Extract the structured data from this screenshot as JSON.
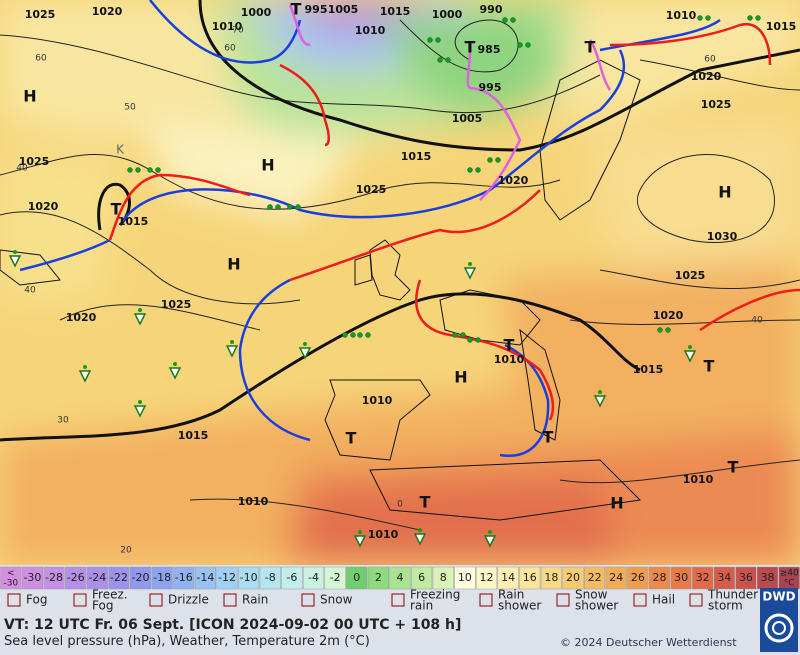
{
  "map": {
    "pressure_labels": [
      "1025",
      "1020",
      "1010",
      "1000",
      "995",
      "1005",
      "1015",
      "1010",
      "1000",
      "990",
      "985",
      "995",
      "1005",
      "1015",
      "1020",
      "1025",
      "1010",
      "1015",
      "1020",
      "1025",
      "1030",
      "1025",
      "1020",
      "1015",
      "1010",
      "1025",
      "1020",
      "1015",
      "1025",
      "1020",
      "1010",
      "1010",
      "1015",
      "1010",
      "1010"
    ],
    "contour_labels": [
      "60",
      "50",
      "40",
      "30",
      "20",
      "40",
      "60",
      "70",
      "0",
      "60",
      "40"
    ],
    "centers": [
      "H",
      "H",
      "H",
      "H",
      "H",
      "H",
      "T",
      "T",
      "T",
      "T",
      "T",
      "T",
      "T",
      "T",
      "T",
      "T",
      "K"
    ]
  },
  "scale": {
    "cells": [
      {
        "lines": [
          "<",
          "-30"
        ],
        "color": "#d58ee0"
      },
      {
        "label": "-30",
        "color": "#cf8ee2"
      },
      {
        "label": "-28",
        "color": "#c490e4"
      },
      {
        "label": "-26",
        "color": "#b88fe6"
      },
      {
        "label": "-24",
        "color": "#aa90e8"
      },
      {
        "label": "-22",
        "color": "#9c92ea"
      },
      {
        "label": "-20",
        "color": "#8f97ee"
      },
      {
        "label": "-18",
        "color": "#8ca4f0"
      },
      {
        "label": "-16",
        "color": "#91b2f2"
      },
      {
        "label": "-14",
        "color": "#98c2f4"
      },
      {
        "label": "-12",
        "color": "#a1d0f5"
      },
      {
        "label": "-10",
        "color": "#aadcf4"
      },
      {
        "label": "-8",
        "color": "#b5e6f0"
      },
      {
        "label": "-6",
        "color": "#c0eeea"
      },
      {
        "label": "-4",
        "color": "#caf2e0"
      },
      {
        "label": "-2",
        "color": "#d6f5d4"
      },
      {
        "label": "0",
        "color": "#6fcf6f"
      },
      {
        "label": "2",
        "color": "#8edb7f"
      },
      {
        "label": "4",
        "color": "#a8e390"
      },
      {
        "label": "6",
        "color": "#c0eba2"
      },
      {
        "label": "8",
        "color": "#d8f2b8"
      },
      {
        "label": "10",
        "color": "#fefde0"
      },
      {
        "label": "12",
        "color": "#fdf7c8"
      },
      {
        "label": "14",
        "color": "#fbeeb0"
      },
      {
        "label": "16",
        "color": "#fae59a"
      },
      {
        "label": "18",
        "color": "#f8d985"
      },
      {
        "label": "20",
        "color": "#f6cb72"
      },
      {
        "label": "22",
        "color": "#f4bc62"
      },
      {
        "label": "24",
        "color": "#f2ac56"
      },
      {
        "label": "26",
        "color": "#f09c50"
      },
      {
        "label": "28",
        "color": "#ec8a4c"
      },
      {
        "label": "30",
        "color": "#e87a4a"
      },
      {
        "label": "32",
        "color": "#e06a4a"
      },
      {
        "label": "34",
        "color": "#d65c4c"
      },
      {
        "label": "36",
        "color": "#c8524e"
      },
      {
        "label": "38",
        "color": "#b84a50"
      },
      {
        "lines": [
          "≥40",
          "°C"
        ],
        "color": "#a84450"
      }
    ]
  },
  "legend": {
    "items": [
      {
        "lines": [
          "Fog"
        ]
      },
      {
        "lines": [
          "Freez.",
          "Fog"
        ]
      },
      {
        "lines": [
          "Drizzle"
        ]
      },
      {
        "lines": [
          "Rain"
        ]
      },
      {
        "lines": [
          "Snow"
        ]
      },
      {
        "lines": [
          "Freezing",
          "rain"
        ]
      },
      {
        "lines": [
          "Rain",
          "shower"
        ]
      },
      {
        "lines": [
          "Snow",
          "shower"
        ]
      },
      {
        "lines": [
          "Hail"
        ]
      },
      {
        "lines": [
          "Thunder",
          "storm"
        ]
      }
    ],
    "logo": "DWD"
  },
  "footer": {
    "valid_time": "VT: 12 UTC Fr.  06 Sept. [ICON 2024-09-02  00 UTC + 108 h]",
    "description": "Sea level pressure (hPa), Weather, Temperature 2m (°C)",
    "copyright": "© 2024 Deutscher Wetterdienst"
  }
}
